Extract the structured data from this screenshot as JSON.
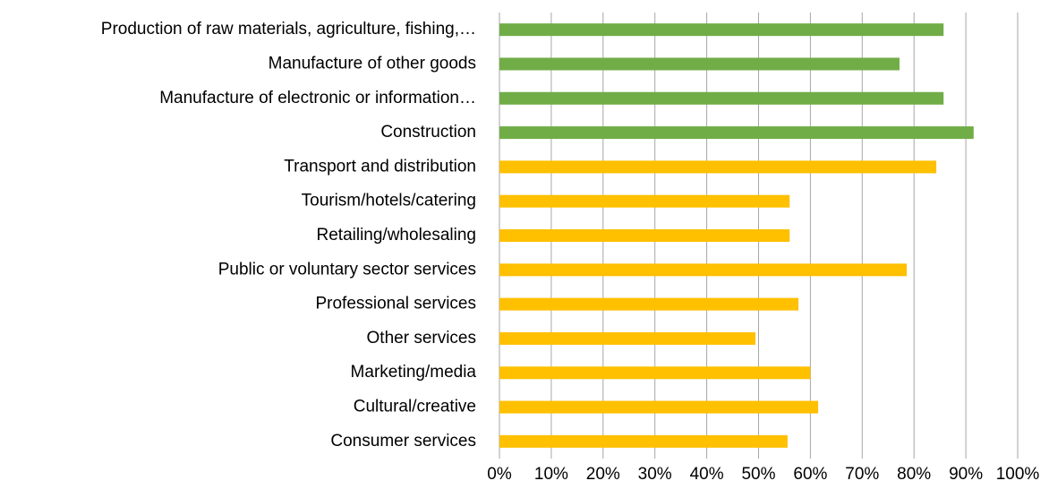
{
  "chart_data": {
    "type": "hbar",
    "categories": [
      "Production of raw materials, agriculture, fishing,…",
      "Manufacture of other goods",
      "Manufacture of electronic or information…",
      "Construction",
      "Transport and distribution",
      "Tourism/hotels/catering",
      "Retailing/wholesaling",
      "Public or voluntary sector services",
      "Professional services",
      "Other services",
      "Marketing/media",
      "Cultural/creative",
      "Consumer services"
    ],
    "values": [
      85.7,
      77.2,
      85.7,
      91.5,
      84.3,
      56,
      56,
      78.6,
      57.7,
      49.4,
      60,
      61.5,
      55.6
    ],
    "colors": [
      "#70ad47",
      "#70ad47",
      "#70ad47",
      "#70ad47",
      "#ffc000",
      "#ffc000",
      "#ffc000",
      "#ffc000",
      "#ffc000",
      "#ffc000",
      "#ffc000",
      "#ffc000",
      "#ffc000"
    ],
    "xlim": [
      0,
      100
    ],
    "xticks": [
      {
        "value": 0,
        "label": "0%"
      },
      {
        "value": 10,
        "label": "10%"
      },
      {
        "value": 20,
        "label": "20%"
      },
      {
        "value": 30,
        "label": "30%"
      },
      {
        "value": 40,
        "label": "40%"
      },
      {
        "value": 50,
        "label": "50%"
      },
      {
        "value": 60,
        "label": "60%"
      },
      {
        "value": 70,
        "label": "70%"
      },
      {
        "value": 80,
        "label": "80%"
      },
      {
        "value": 90,
        "label": "90%"
      },
      {
        "value": 100,
        "label": "100%"
      }
    ],
    "grid": true
  }
}
